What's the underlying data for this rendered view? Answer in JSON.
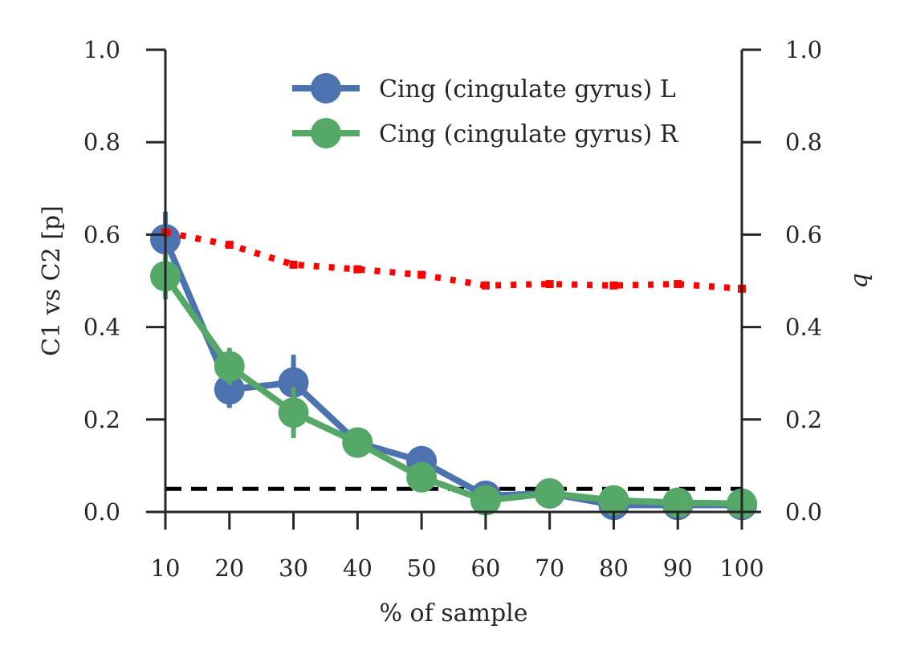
{
  "chart_data": {
    "type": "line",
    "title": "",
    "xlabel": "% of sample",
    "ylabel": "C1 vs C2 [p]",
    "ylabel_right": "q",
    "x": [
      10,
      20,
      30,
      40,
      50,
      60,
      70,
      80,
      90,
      100
    ],
    "xticks": [
      "10",
      "20",
      "30",
      "40",
      "50",
      "60",
      "70",
      "80",
      "90",
      "100"
    ],
    "yticks": [
      "0.0",
      "0.2",
      "0.4",
      "0.6",
      "0.8",
      "1.0"
    ],
    "yticks_right": [
      "0.0",
      "0.2",
      "0.4",
      "0.6",
      "0.8",
      "1.0"
    ],
    "xlim": [
      10,
      100
    ],
    "ylim": [
      0,
      1.0
    ],
    "ylim_right": [
      0,
      1.0
    ],
    "grid": false,
    "legend_position": "top-right",
    "series": [
      {
        "name": "Cing (cingulate gyrus) L",
        "color": "#4c72b0",
        "style": "solid-markers",
        "values": [
          0.59,
          0.265,
          0.28,
          0.15,
          0.11,
          0.035,
          0.04,
          0.015,
          0.015,
          0.015
        ],
        "errors": [
          0.06,
          0.04,
          0.06,
          0.015,
          0.015,
          0.01,
          0.01,
          0.005,
          0.005,
          0.005
        ]
      },
      {
        "name": "Cing (cingulate gyrus) R",
        "color": "#55a868",
        "style": "solid-markers",
        "values": [
          0.51,
          0.315,
          0.215,
          0.15,
          0.075,
          0.025,
          0.04,
          0.025,
          0.02,
          0.018
        ],
        "errors": [
          0.05,
          0.04,
          0.055,
          0.015,
          0.015,
          0.01,
          0.01,
          0.005,
          0.005,
          0.005
        ]
      },
      {
        "color": "#ff0000",
        "style": "dotted",
        "axis": "right",
        "values": [
          0.605,
          0.578,
          0.535,
          0.525,
          0.513,
          0.49,
          0.493,
          0.49,
          0.493,
          0.483
        ]
      }
    ],
    "reference_line": {
      "y": 0.05,
      "color": "#000000",
      "style": "dashed"
    }
  }
}
